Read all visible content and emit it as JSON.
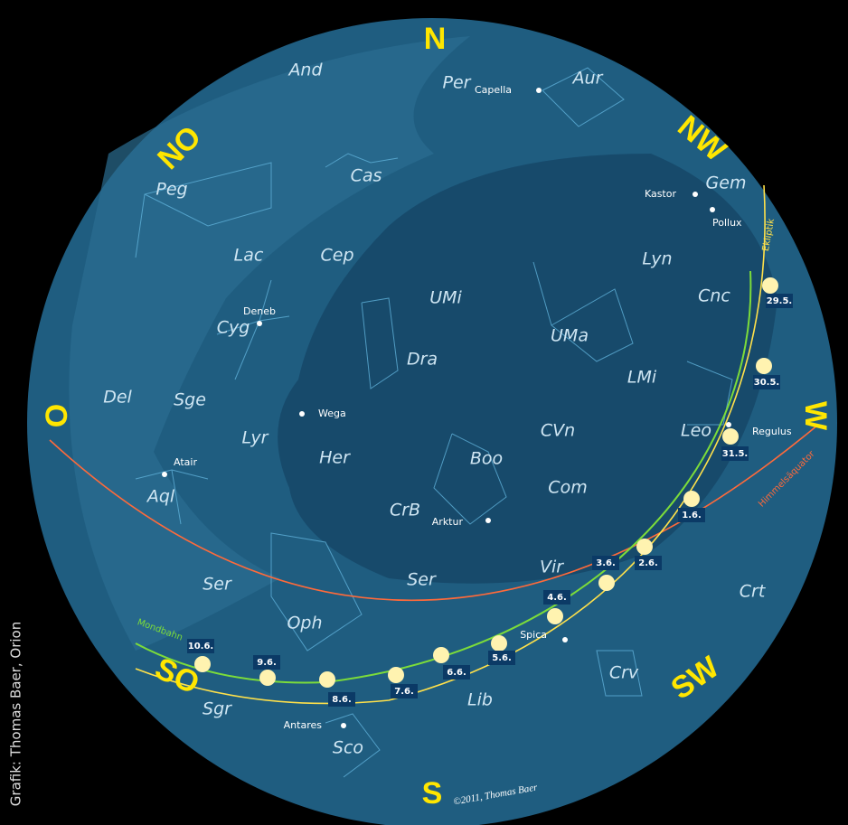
{
  "compass": [
    "N",
    "NO",
    "NW",
    "O",
    "W",
    "SO",
    "SW",
    "S"
  ],
  "constellations": [
    "And",
    "Per",
    "Aur",
    "Cas",
    "Peg",
    "Gem",
    "Lac",
    "Cep",
    "Lyn",
    "Cnc",
    "UMi",
    "Cyg",
    "UMa",
    "Dra",
    "Del",
    "Sge",
    "LMi",
    "Lyr",
    "CVn",
    "Leo",
    "Her",
    "Boo",
    "Aql",
    "Com",
    "CrB",
    "Ser",
    "Vir",
    "Crt",
    "Ser",
    "Oph",
    "Crv",
    "Sgr",
    "Lib",
    "Sco"
  ],
  "stars": [
    "Capella",
    "Kastor",
    "Pollux",
    "Deneb",
    "Wega",
    "Regulus",
    "Atair",
    "Arktur",
    "Spica",
    "Antares"
  ],
  "lines": {
    "ecliptic": "Ekliptik",
    "equator": "Himmelsäquator",
    "moon_path": "Mondbahn"
  },
  "moon_dates": [
    "29.5.",
    "30.5.",
    "31.5.",
    "1.6.",
    "2.6.",
    "3.6.",
    "4.6.",
    "5.6.",
    "6.6.",
    "7.6.",
    "8.6.",
    "9.6.",
    "10.6."
  ],
  "credit": "©2011, Thomas Baer",
  "side_credit": "Grafik: Thomas Baer, Orion"
}
